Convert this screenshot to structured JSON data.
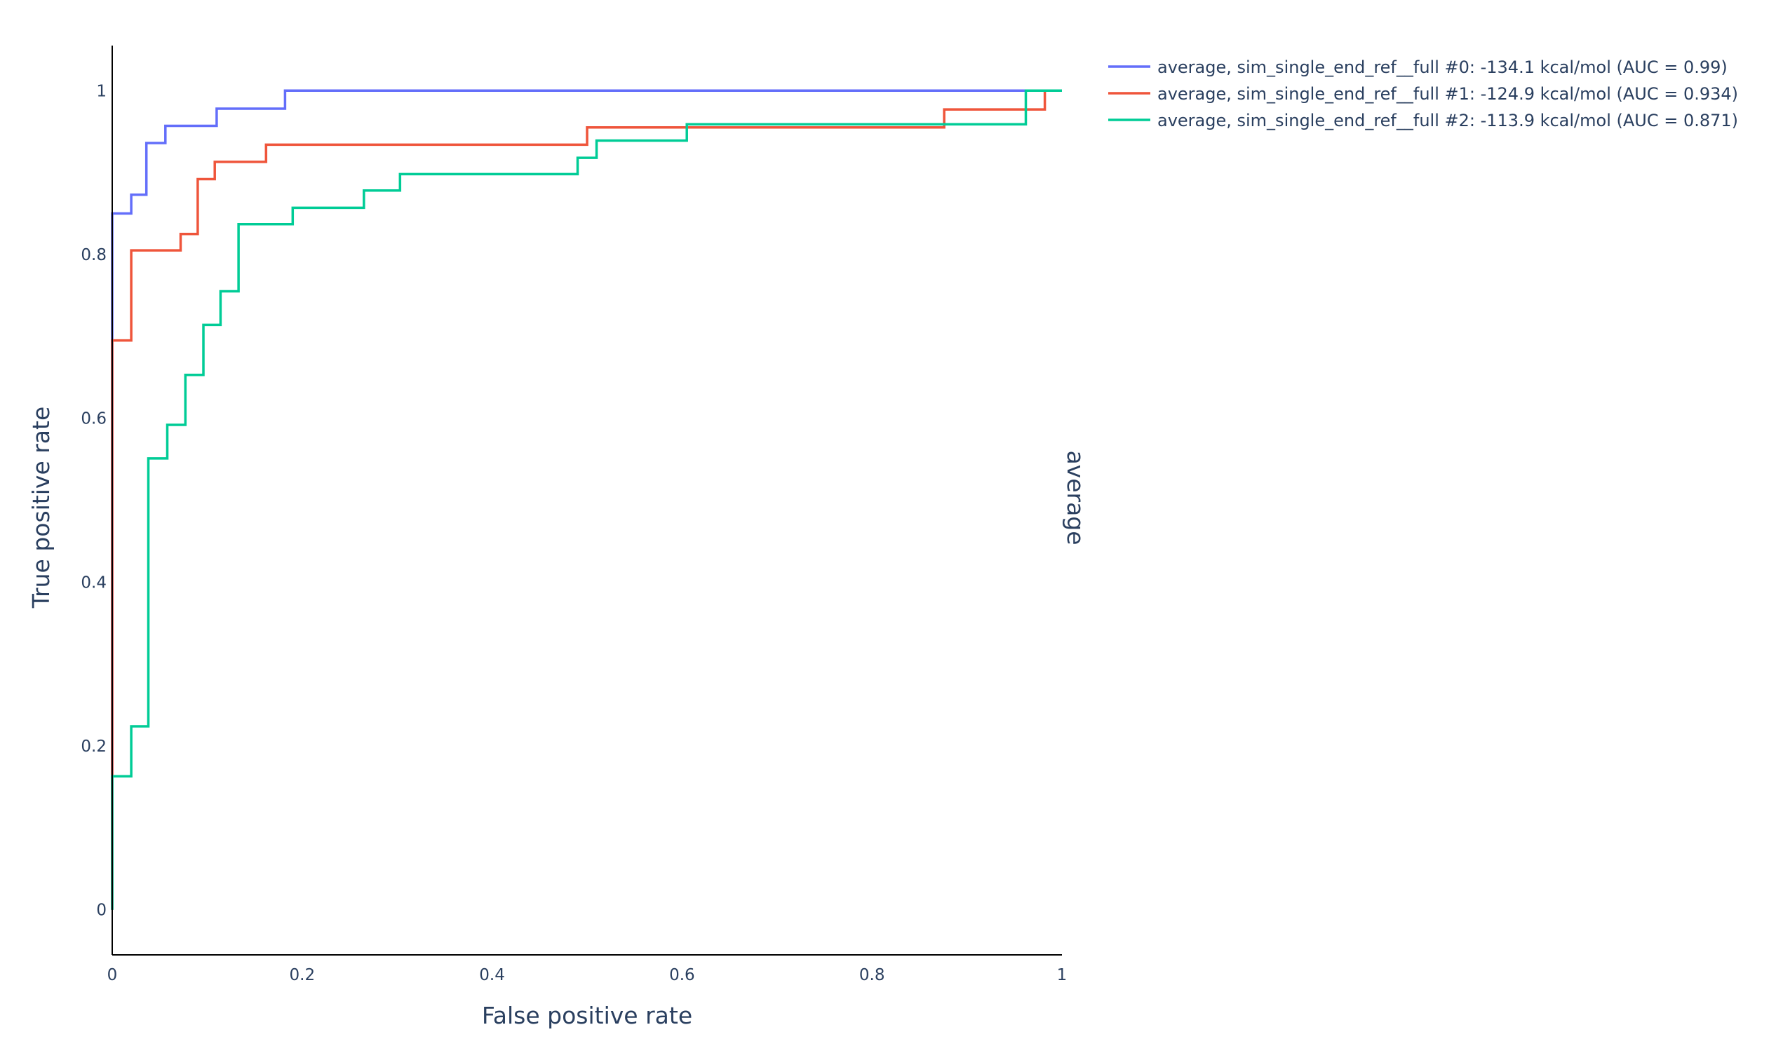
{
  "chart_data": {
    "type": "line",
    "line_shape": "step",
    "xlabel": "False positive rate",
    "ylabel": "True positive rate",
    "facet_label": "average",
    "xlim": [
      0,
      1
    ],
    "ylim": [
      -0.055,
      1.055
    ],
    "x_ticks": [
      0,
      0.2,
      0.4,
      0.6,
      0.8,
      1
    ],
    "x_tick_labels": [
      "0",
      "0.2",
      "0.4",
      "0.6",
      "0.8",
      "1"
    ],
    "y_ticks": [
      0,
      0.2,
      0.4,
      0.6,
      0.8,
      1
    ],
    "y_tick_labels": [
      "0",
      "0.2",
      "0.4",
      "0.6",
      "0.8",
      "1"
    ],
    "grid": false,
    "legend_position": "top-right, outside plot",
    "series": [
      {
        "name": "average, sim_single_end_ref__full #0: -134.1 kcal/mol (AUC = 0.99)",
        "color": "#636efa",
        "x": [
          0,
          0,
          0,
          0.02,
          0.02,
          0.036,
          0.036,
          0.056,
          0.056,
          0.11,
          0.11,
          0.182,
          0.182,
          1
        ],
        "y": [
          0,
          0.85,
          0.85,
          0.85,
          0.873,
          0.873,
          0.936,
          0.936,
          0.957,
          0.957,
          0.978,
          0.978,
          1,
          1
        ]
      },
      {
        "name": "average, sim_single_end_ref__full #1: -124.9 kcal/mol (AUC = 0.934)",
        "color": "#ef553b",
        "x": [
          0,
          0,
          0.02,
          0.02,
          0.072,
          0.072,
          0.09,
          0.09,
          0.108,
          0.108,
          0.162,
          0.162,
          0.5,
          0.5,
          0.876,
          0.876,
          0.982,
          0.982,
          1
        ],
        "y": [
          0,
          0.695,
          0.695,
          0.805,
          0.805,
          0.825,
          0.825,
          0.892,
          0.892,
          0.913,
          0.913,
          0.934,
          0.934,
          0.955,
          0.955,
          0.977,
          0.977,
          1,
          1
        ]
      },
      {
        "name": "average, sim_single_end_ref__full #2: -113.9 kcal/mol (AUC = 0.871)",
        "color": "#00cc96",
        "x": [
          0,
          0,
          0.02,
          0.02,
          0.038,
          0.038,
          0.058,
          0.058,
          0.077,
          0.077,
          0.096,
          0.096,
          0.114,
          0.114,
          0.133,
          0.133,
          0.19,
          0.19,
          0.265,
          0.265,
          0.303,
          0.303,
          0.49,
          0.49,
          0.51,
          0.51,
          0.605,
          0.605,
          0.962,
          0.962,
          1
        ],
        "y": [
          0,
          0.163,
          0.163,
          0.224,
          0.224,
          0.551,
          0.551,
          0.592,
          0.592,
          0.653,
          0.653,
          0.714,
          0.714,
          0.755,
          0.755,
          0.837,
          0.837,
          0.857,
          0.857,
          0.878,
          0.878,
          0.898,
          0.898,
          0.918,
          0.918,
          0.939,
          0.939,
          0.959,
          0.959,
          1,
          1
        ]
      }
    ]
  }
}
